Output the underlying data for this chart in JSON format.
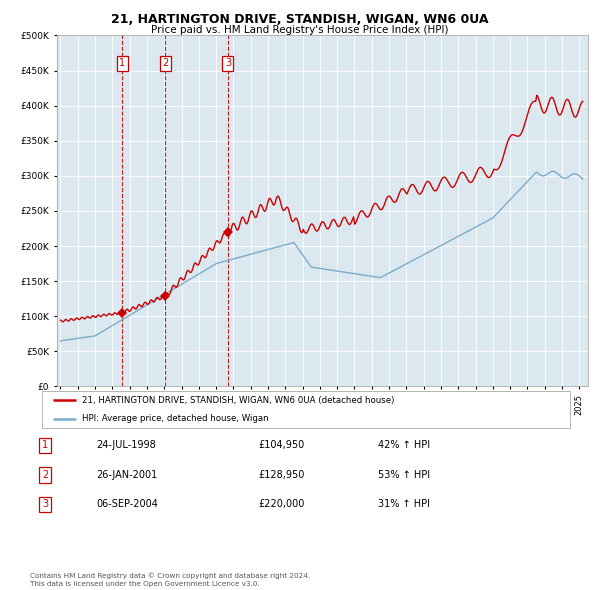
{
  "title": "21, HARTINGTON DRIVE, STANDISH, WIGAN, WN6 0UA",
  "subtitle": "Price paid vs. HM Land Registry's House Price Index (HPI)",
  "plot_bg_color": "#dce8f0",
  "sale_dates": [
    1998.56,
    2001.07,
    2004.68
  ],
  "sale_prices": [
    104950,
    128950,
    220000
  ],
  "sale_labels": [
    "1",
    "2",
    "3"
  ],
  "legend_entries": [
    "21, HARTINGTON DRIVE, STANDISH, WIGAN, WN6 0UA (detached house)",
    "HPI: Average price, detached house, Wigan"
  ],
  "table_rows": [
    [
      "1",
      "24-JUL-1998",
      "£104,950",
      "42% ↑ HPI"
    ],
    [
      "2",
      "26-JAN-2001",
      "£128,950",
      "53% ↑ HPI"
    ],
    [
      "3",
      "06-SEP-2004",
      "£220,000",
      "31% ↑ HPI"
    ]
  ],
  "footer": "Contains HM Land Registry data © Crown copyright and database right 2024.\nThis data is licensed under the Open Government Licence v3.0.",
  "red_color": "#cc0000",
  "blue_color": "#7aadcc",
  "ylim": [
    0,
    500000
  ],
  "yticks": [
    0,
    50000,
    100000,
    150000,
    200000,
    250000,
    300000,
    350000,
    400000,
    450000,
    500000
  ],
  "xlim": [
    1994.8,
    2025.5
  ]
}
